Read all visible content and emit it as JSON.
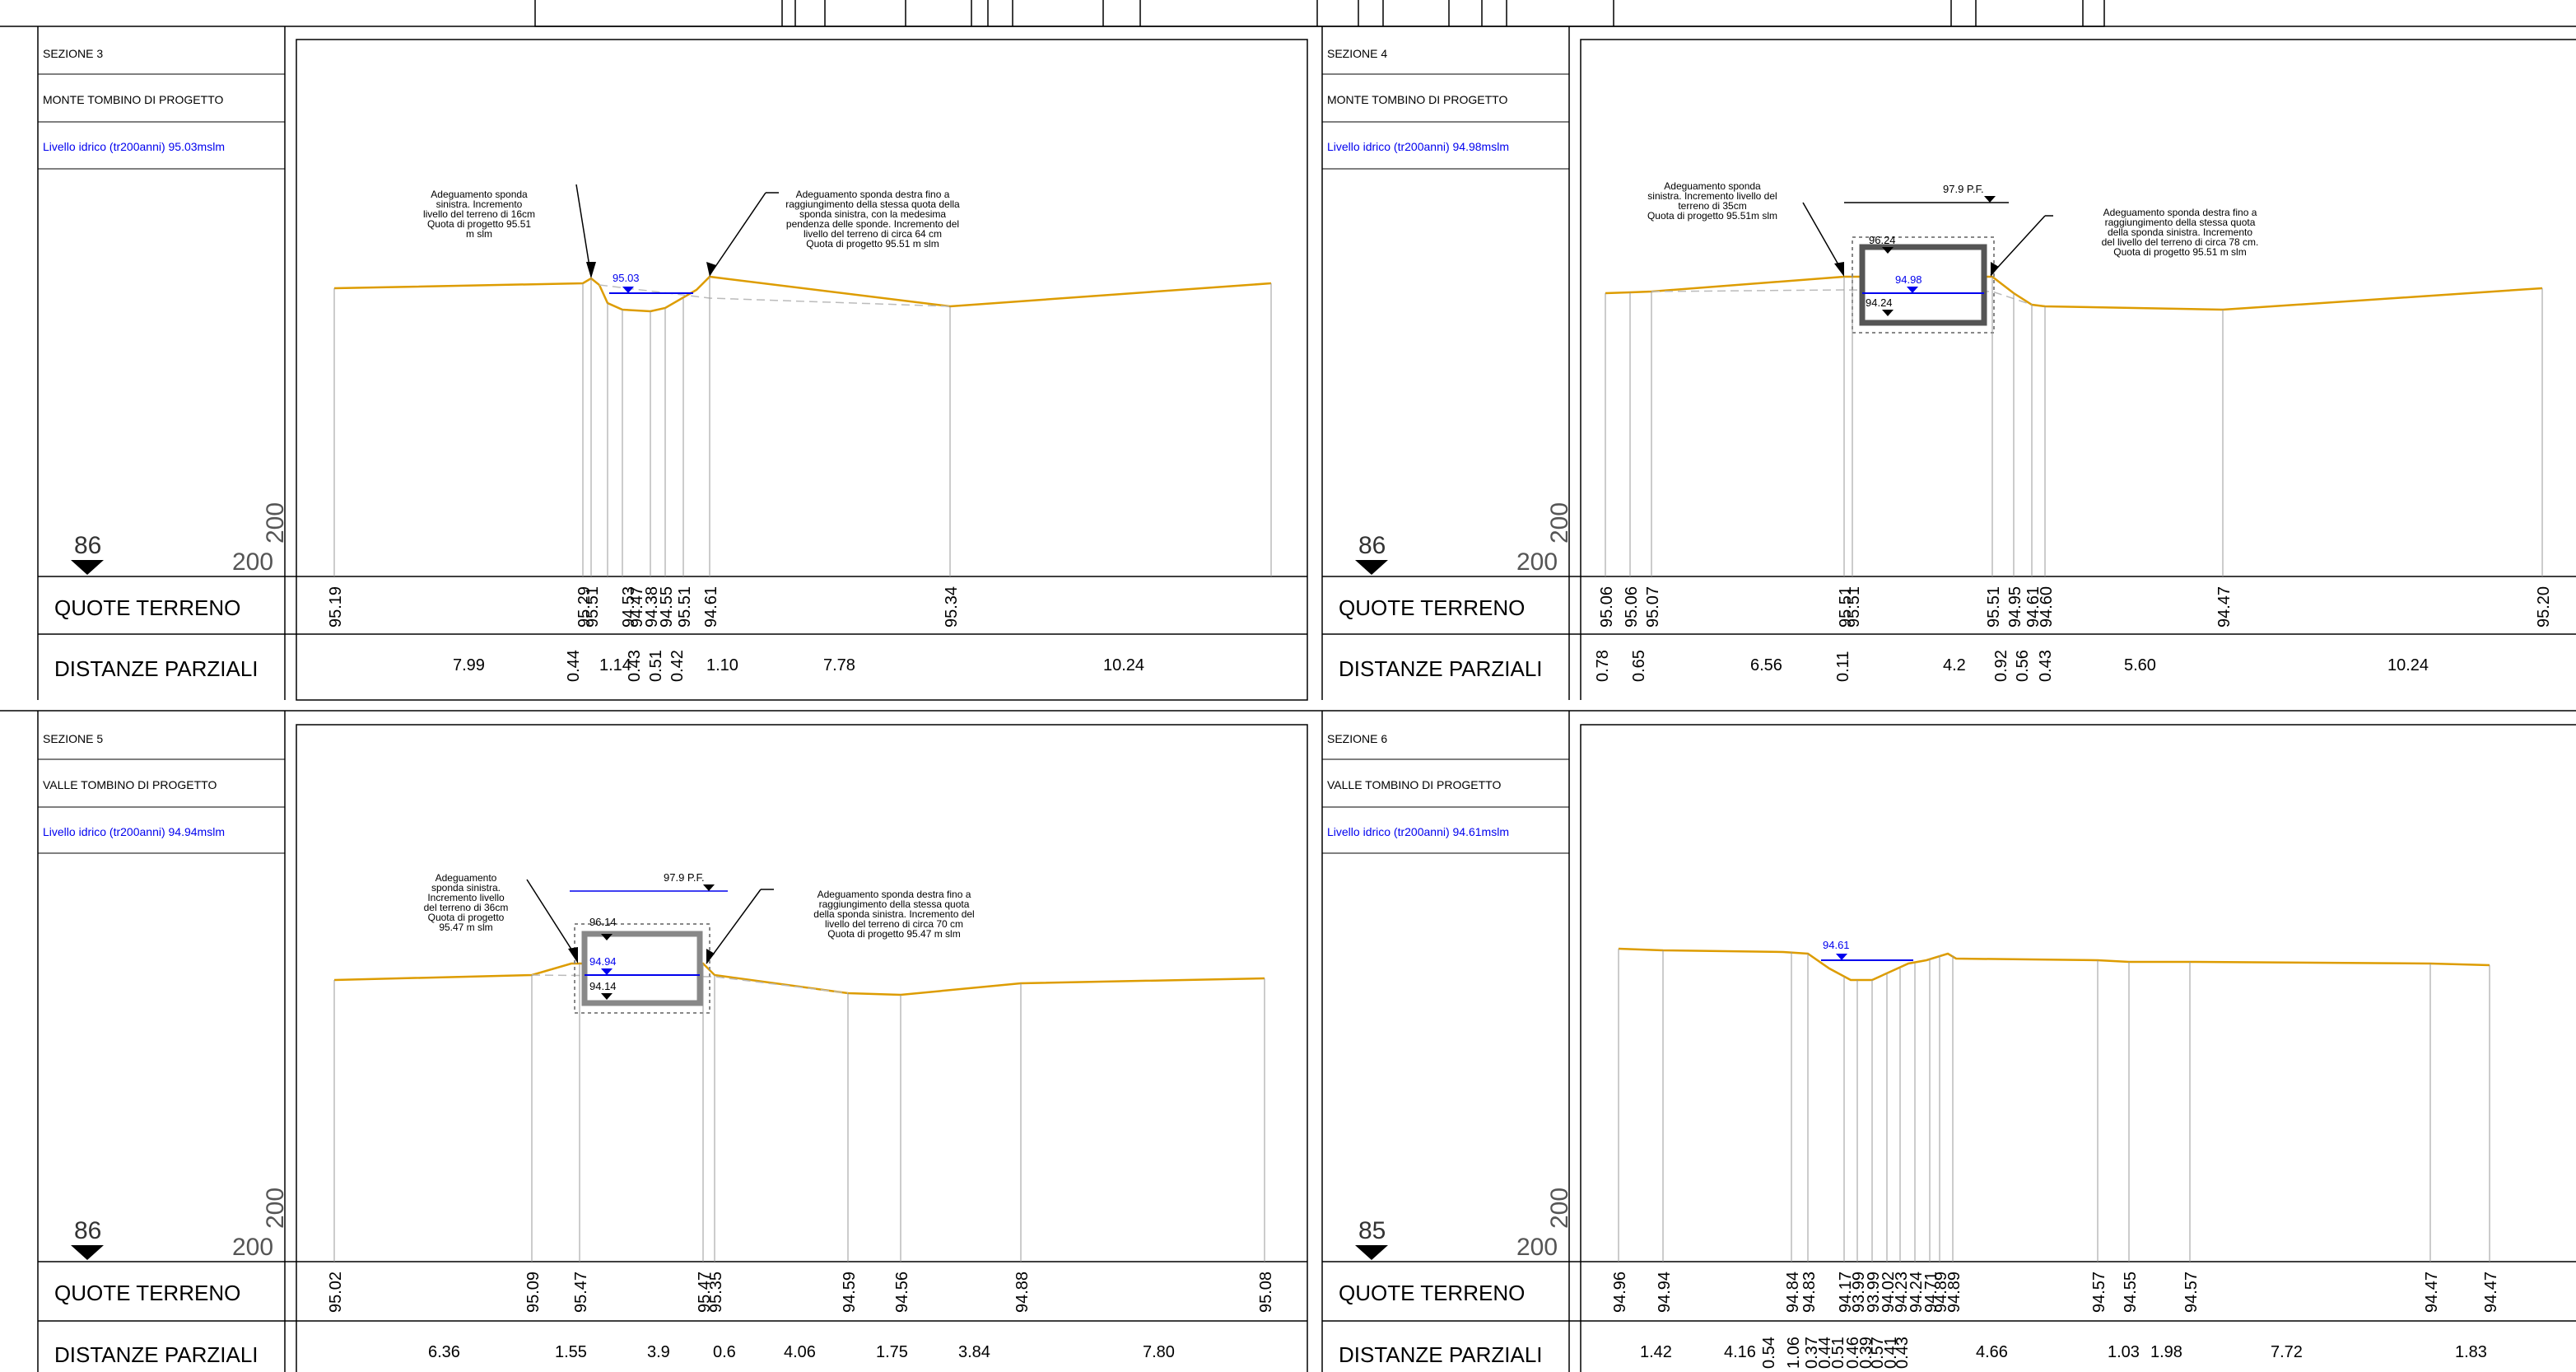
{
  "panels": [
    {
      "id": "s3",
      "section": "SEZIONE 3",
      "location": "MONTE TOMBINO DI PROGETTO",
      "water_level": "Livello idrico (tr200anni) 95.03mslm",
      "datum": "86",
      "scale_h": "200",
      "scale_v": "200",
      "row1": "QUOTE TERRENO",
      "row2": "DISTANZE PARZIALI",
      "elevations": [
        "95.19",
        "95.29",
        "95.51",
        "94.53",
        "94.47",
        "94.38",
        "94.55",
        "95.51",
        "94.61",
        "95.34"
      ],
      "distances": [
        "7.99",
        "0.44",
        "1.14",
        "0.43",
        "0.51",
        "0.42",
        "1.10",
        "7.78",
        "10.24"
      ],
      "level_labels": [
        "95.03"
      ],
      "notes": [
        [
          "Adeguamento sponda",
          "sinistra. Incremento",
          "livello del terreno di 16cm",
          "Quota di progetto 95.51",
          "m slm"
        ],
        [
          "Adeguamento sponda destra fino a",
          "raggiungimento della stessa quota della",
          "sponda sinistra, con la medesima",
          "pendenza delle sponde. Incremento del",
          "livello del terreno di circa 64 cm",
          "Quota di progetto 95.51 m slm"
        ]
      ]
    },
    {
      "id": "s4",
      "section": "SEZIONE 4",
      "location": "MONTE TOMBINO DI PROGETTO",
      "water_level": "Livello idrico (tr200anni) 94.98mslm",
      "datum": "86",
      "scale_h": "200",
      "scale_v": "200",
      "row1": "QUOTE TERRENO",
      "row2": "DISTANZE PARZIALI",
      "elevations": [
        "95.06",
        "95.06",
        "95.07",
        "95.51",
        "95.51",
        "95.51",
        "94.95",
        "94.61",
        "94.60",
        "94.47",
        "95.20"
      ],
      "distances": [
        "0.78",
        "0.65",
        "6.56",
        "0.11",
        "4.2",
        "0.92",
        "0.56",
        "0.43",
        "5.60",
        "10.24"
      ],
      "level_labels": [
        "96.24",
        "94.98",
        "94.24",
        "97.9 P.F."
      ],
      "notes": [
        [
          "Adeguamento sponda",
          "sinistra. Incremento livello del",
          "terreno di 35cm",
          "Quota di progetto 95.51m slm"
        ],
        [
          "Adeguamento sponda destra fino a",
          "raggiungimento della stessa quota",
          "della sponda sinistra. Incremento",
          "del livello del terreno di circa 78 cm.",
          "Quota di progetto 95.51 m slm"
        ]
      ]
    },
    {
      "id": "s5",
      "section": "SEZIONE 5",
      "location": "VALLE TOMBINO DI PROGETTO",
      "water_level": "Livello idrico (tr200anni) 94.94mslm",
      "datum": "86",
      "scale_h": "200",
      "scale_v": "200",
      "row1": "QUOTE TERRENO",
      "row2": "DISTANZE PARZIALI",
      "elevations": [
        "95.02",
        "95.09",
        "95.47",
        "95.47",
        "95.35",
        "94.59",
        "94.56",
        "94.88",
        "95.08"
      ],
      "distances": [
        "6.36",
        "1.55",
        "3.9",
        "0.6",
        "4.06",
        "1.75",
        "3.84",
        "7.80"
      ],
      "level_labels": [
        "96.14",
        "94.94",
        "94.14",
        "97.9 P.F."
      ],
      "notes": [
        [
          "Adeguamento",
          "sponda sinistra.",
          "Incremento livello",
          "del terreno di 36cm",
          "Quota di progetto",
          "95.47 m slm"
        ],
        [
          "Adeguamento sponda destra fino a",
          "raggiungimento della stessa quota",
          "della sponda sinistra. Incremento del",
          "livello del terreno di circa 70 cm",
          "Quota di progetto 95.47 m slm"
        ]
      ]
    },
    {
      "id": "s6",
      "section": "SEZIONE 6",
      "location": "VALLE TOMBINO DI PROGETTO",
      "water_level": "Livello idrico (tr200anni) 94.61mslm",
      "datum": "85",
      "scale_h": "200",
      "scale_v": "200",
      "row1": "QUOTE TERRENO",
      "row2": "DISTANZE PARZIALI",
      "elevations": [
        "94.96",
        "94.94",
        "94.84",
        "94.83",
        "94.17",
        "93.99",
        "93.99",
        "94.02",
        "94.23",
        "94.24",
        "94.71",
        "94.89",
        "94.89",
        "94.57",
        "94.55",
        "94.57",
        "94.47",
        "94.47"
      ],
      "distances": [
        "1.42",
        "4.16",
        "0.54",
        "1.06",
        "0.37",
        "0.44",
        "0.51",
        "0.46",
        "0.39",
        "0.57",
        "0.41",
        "0.43",
        "4.66",
        "1.03",
        "1.98",
        "7.72",
        "1.83"
      ],
      "level_labels": [
        "94.61"
      ],
      "notes": []
    }
  ]
}
